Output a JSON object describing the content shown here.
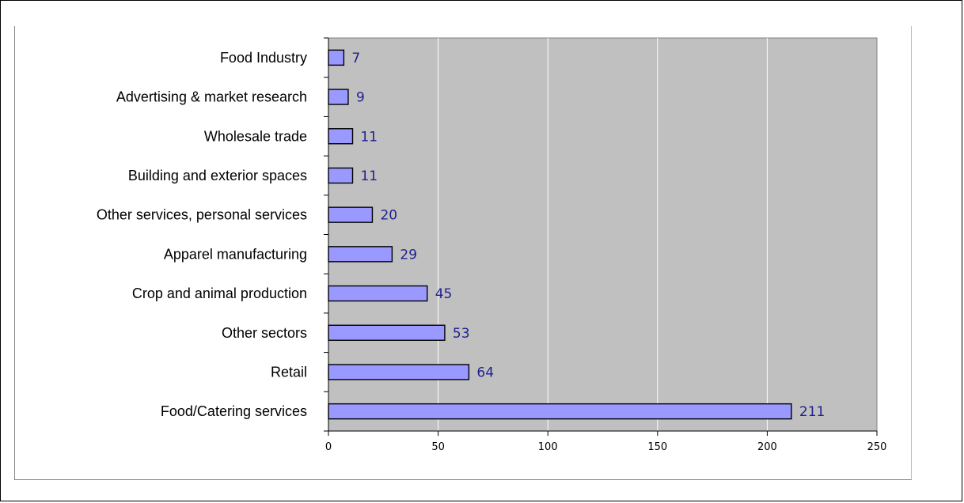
{
  "chart_data": {
    "type": "bar",
    "orientation": "horizontal",
    "categories": [
      "Food Industry",
      "Advertising & market research",
      "Wholesale trade",
      "Building and exterior spaces",
      "Other services, personal services",
      "Apparel manufacturing",
      "Crop and animal production",
      "Other sectors",
      "Retail",
      "Food/Catering services"
    ],
    "values": [
      7,
      9,
      11,
      11,
      20,
      29,
      45,
      53,
      64,
      211
    ],
    "xlim": [
      0,
      250
    ],
    "xticks": [
      "0",
      "50",
      "100",
      "150",
      "200",
      "250"
    ],
    "grid": true,
    "colors": {
      "bar_fill": "#9999ff",
      "bar_stroke": "#000000",
      "plot_background": "#c0c0c0",
      "grid": "#ffffff",
      "value_label": "#1f1f8f"
    }
  }
}
